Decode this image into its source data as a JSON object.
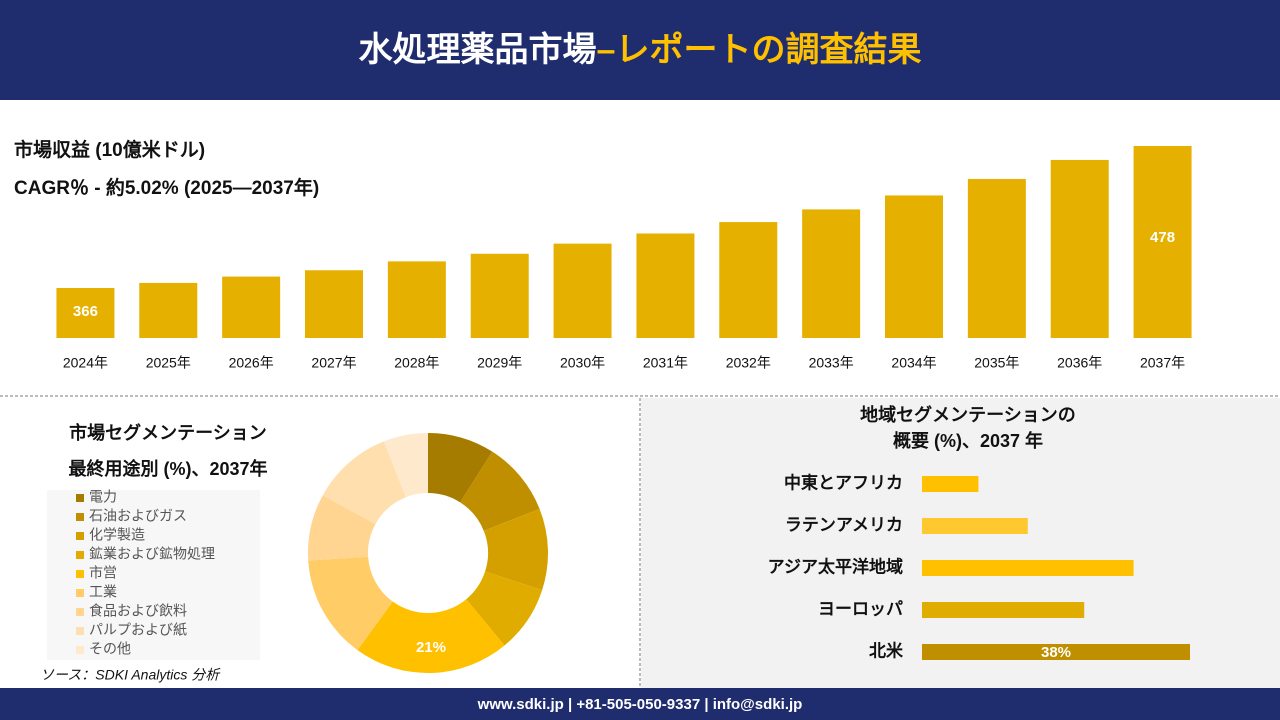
{
  "header": {
    "title": "水処理薬品市場",
    "title_highlight": "–レポートの調査結果"
  },
  "chart_data": [
    {
      "type": "bar",
      "title": "市場収益 (10億米ドル)",
      "subtitle": "CAGR％ - 約5.02% (2025―2037年)",
      "categories": [
        "2024年",
        "2025年",
        "2026年",
        "2027年",
        "2028年",
        "2029年",
        "2030年",
        "2031年",
        "2032年",
        "2033年",
        "2034年",
        "2035年",
        "2036年",
        "2037年"
      ],
      "values": [
        366,
        370,
        375,
        380,
        387,
        393,
        401,
        409,
        418,
        428,
        439,
        452,
        467,
        478
      ],
      "value_labels": [
        "366",
        null,
        null,
        null,
        null,
        null,
        null,
        null,
        null,
        null,
        null,
        null,
        null,
        "478"
      ],
      "color": "#e6b000"
    },
    {
      "type": "donut",
      "title": "市場セグメンテーション",
      "subtitle": "最終用途別 (%)、2037年",
      "categories": [
        "電力",
        "石油およびガス",
        "化学製造",
        "鉱業および鉱物処理",
        "市営",
        "工業",
        "食品および飲料",
        "パルプおよび紙",
        "その他"
      ],
      "values": [
        9,
        10,
        11,
        9,
        21,
        14,
        9,
        11,
        6
      ],
      "value_labels": [
        null,
        null,
        null,
        null,
        "21%",
        null,
        null,
        null,
        null
      ],
      "colors": [
        "#a67c00",
        "#bf8f00",
        "#d4a000",
        "#e0ac00",
        "#ffc000",
        "#ffcc66",
        "#ffd591",
        "#ffdfae",
        "#ffe9cc"
      ]
    },
    {
      "type": "barh",
      "title": "地域セグメンテーションの",
      "subtitle": "概要 (%)、2037 年",
      "categories": [
        "中東とアフリカ",
        "ラテンアメリカ",
        "アジア太平洋地域",
        "ヨーロッパ",
        "北米"
      ],
      "values": [
        8,
        15,
        30,
        23,
        38
      ],
      "value_labels": [
        null,
        null,
        null,
        null,
        "38%"
      ],
      "colors": [
        "#ffc000",
        "#ffc82e",
        "#ffc000",
        "#e0ac00",
        "#bf8f00"
      ]
    }
  ],
  "source": "ソース：SDKI Analytics 分析",
  "footer": "www.sdki.jp | +81-505-050-9337 | info@sdki.jp"
}
